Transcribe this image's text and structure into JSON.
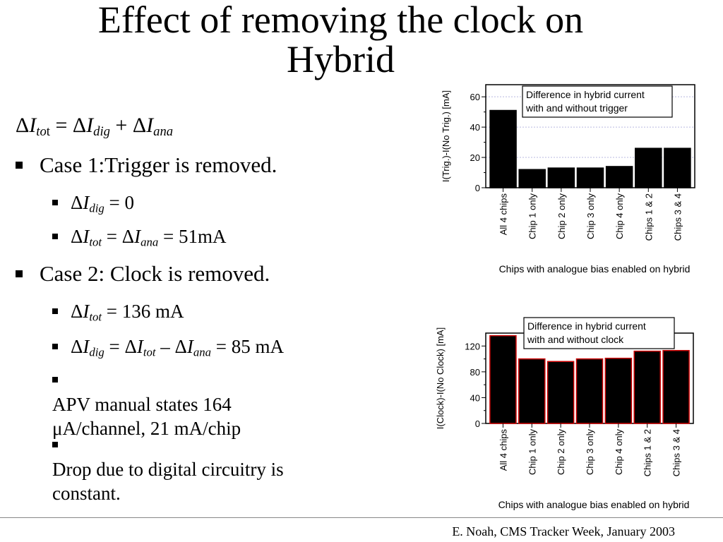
{
  "slide": {
    "title_line1": "Effect of removing the clock on",
    "title_line2": "Hybrid",
    "footer": "E. Noah, CMS Tracker Week, January 2003"
  },
  "equation": {
    "delta": "Δ",
    "I": "I",
    "tot_sub_italic": "to",
    "tot_sub_plain": "t",
    "equals": " = ",
    "dig_sub": "dig",
    "plus": " + ",
    "ana_sub": "ana"
  },
  "bullets": {
    "case1": "Case 1:Trigger is removed.",
    "case1_a_value": " = 0",
    "case1_b_value": " = 51mA",
    "case2": "Case 2: Clock is removed.",
    "case2_a_value": " = 136 mA",
    "case2_b_minus": " – ",
    "case2_b_value": " = 85 mA",
    "apv_line1": "APV manual states 164",
    "apv_line2": "μA/channel, 21 mA/chip",
    "drop_line1": "Drop due to digital circuitry is",
    "drop_line2": "constant.",
    "sub_tot": "tot",
    "sub_dig": "dig",
    "sub_ana": "ana",
    "equals": " = "
  },
  "chart_data": [
    {
      "type": "bar",
      "title": "",
      "annotation": [
        "Difference in hybrid current",
        "with and without trigger"
      ],
      "ylabel": "I(Trig.)-I(No Trig.) [mA]",
      "xlabel": "Chips with analogue bias enabled on hybrid",
      "categories": [
        "All 4 chips",
        "Chip 1 only",
        "Chip 2 only",
        "Chip 3 only",
        "Chip 4 only",
        "Chips 1 & 2",
        "Chips 3 & 4"
      ],
      "values": [
        51,
        12,
        13,
        13,
        14,
        26,
        26
      ],
      "ylim": [
        0,
        68
      ],
      "yticks": [
        0,
        20,
        40,
        60
      ],
      "grid": true,
      "bar_color": "#000000",
      "bar_edge_color": "#000000"
    },
    {
      "type": "bar",
      "title": "",
      "annotation": [
        "Difference in hybrid current",
        "with and without clock"
      ],
      "ylabel": "I(Clock)-I(No Clock) [mA]",
      "xlabel": "Chips with analogue bias enabled on hybrid",
      "categories": [
        "All 4 chips",
        "Chip 1 only",
        "Chip 2 only",
        "Chip 3 only",
        "Chip 4 only",
        "Chips 1 & 2",
        "Chips 3 & 4"
      ],
      "values": [
        136,
        100,
        96,
        100,
        101,
        112,
        113
      ],
      "ylim": [
        0,
        140
      ],
      "yticks": [
        0,
        40,
        80,
        120
      ],
      "grid": false,
      "bar_color": "#000000",
      "bar_edge_color": "#cc0000"
    }
  ]
}
